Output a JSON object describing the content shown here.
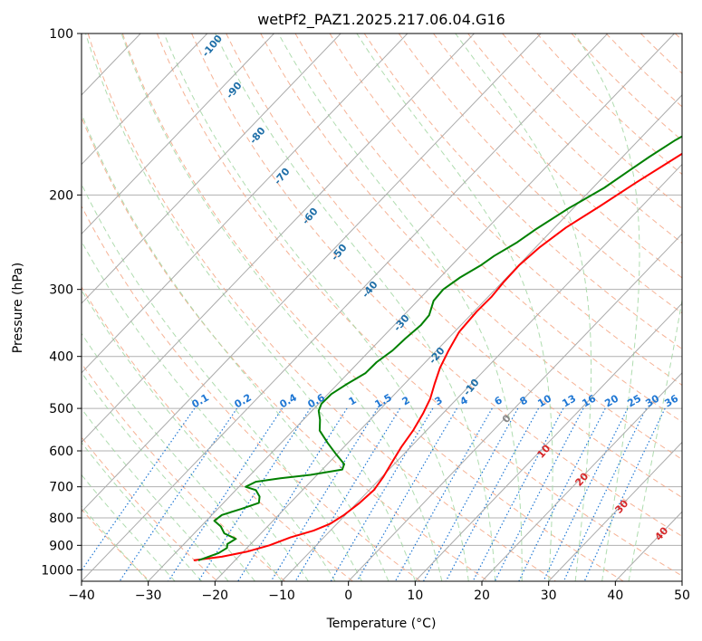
{
  "chart_data": {
    "type": "line",
    "title": "wetPf2_PAZ1.2025.217.06.04.G16",
    "xlabel": "Temperature (°C)",
    "ylabel": "Pressure (hPa)",
    "xlim": [
      -40,
      50
    ],
    "ylim": [
      1050,
      100
    ],
    "y_scale": "log",
    "grid": true,
    "x_ticks": [
      -40,
      -30,
      -20,
      -10,
      0,
      10,
      20,
      30,
      40,
      50
    ],
    "y_ticks": [
      100,
      200,
      300,
      400,
      500,
      600,
      700,
      800,
      900,
      1000
    ],
    "x_tick_labels": [
      "−40",
      "−30",
      "−20",
      "−10",
      "0",
      "10",
      "20",
      "30",
      "40",
      "50"
    ],
    "y_tick_labels": [
      "100",
      "200",
      "300",
      "400",
      "500",
      "600",
      "700",
      "800",
      "900",
      "1000"
    ],
    "colors": {
      "temperature": "#ff0000",
      "dewpoint": "#008000",
      "isotherm": "#aaaaaa",
      "dry_adiabat": "#f4a582",
      "moist_adiabat": "#a6d8a6",
      "mixing_ratio": "#1f77d4",
      "dry_label": "#d62728",
      "moist_label": "#1f6fa8"
    },
    "series": [
      {
        "points": [
          [
            -26.2,
            960
          ],
          [
            -22.5,
            945
          ],
          [
            -19.5,
            925
          ],
          [
            -17.0,
            900
          ],
          [
            -15.0,
            870
          ],
          [
            -12.5,
            845
          ],
          [
            -11.0,
            820
          ],
          [
            -10.2,
            790
          ],
          [
            -9.6,
            750
          ],
          [
            -9.3,
            710
          ],
          [
            -9.8,
            670
          ],
          [
            -10.6,
            630
          ],
          [
            -11.4,
            590
          ],
          [
            -12.0,
            550
          ],
          [
            -13.0,
            510
          ],
          [
            -14.0,
            480
          ],
          [
            -15.5,
            450
          ],
          [
            -17.0,
            420
          ],
          [
            -18.2,
            390
          ],
          [
            -19.3,
            360
          ],
          [
            -19.6,
            330
          ],
          [
            -19.5,
            310
          ],
          [
            -19.8,
            290
          ],
          [
            -19.9,
            270
          ],
          [
            -19.4,
            250
          ],
          [
            -18.3,
            230
          ],
          [
            -16.3,
            210
          ],
          [
            -14.3,
            190
          ],
          [
            -12.5,
            175
          ],
          [
            -10.5,
            160
          ],
          [
            -8.5,
            145
          ],
          [
            -6.5,
            132
          ],
          [
            -5.0,
            120
          ],
          [
            -3.0,
            110
          ],
          [
            0.0,
            102
          ],
          [
            2.5,
            96
          ]
        ]
      },
      {
        "points": [
          [
            -25.5,
            960
          ],
          [
            -24.5,
            945
          ],
          [
            -23.5,
            930
          ],
          [
            -23.0,
            910
          ],
          [
            -23.5,
            895
          ],
          [
            -23.0,
            875
          ],
          [
            -25.5,
            855
          ],
          [
            -27.0,
            830
          ],
          [
            -28.8,
            810
          ],
          [
            -28.5,
            790
          ],
          [
            -26.5,
            770
          ],
          [
            -24.7,
            750
          ],
          [
            -25.5,
            730
          ],
          [
            -27.0,
            710
          ],
          [
            -29.0,
            700
          ],
          [
            -28.2,
            685
          ],
          [
            -25.0,
            675
          ],
          [
            -21.0,
            665
          ],
          [
            -17.0,
            650
          ],
          [
            -17.5,
            635
          ],
          [
            -20.0,
            610
          ],
          [
            -23.0,
            580
          ],
          [
            -26.0,
            550
          ],
          [
            -27.5,
            525
          ],
          [
            -29.0,
            505
          ],
          [
            -29.6,
            490
          ],
          [
            -29.5,
            470
          ],
          [
            -28.6,
            450
          ],
          [
            -27.4,
            430
          ],
          [
            -27.3,
            410
          ],
          [
            -26.6,
            390
          ],
          [
            -26.4,
            370
          ],
          [
            -26.0,
            350
          ],
          [
            -26.2,
            335
          ],
          [
            -27.6,
            315
          ],
          [
            -27.8,
            300
          ],
          [
            -27.0,
            285
          ],
          [
            -25.6,
            270
          ],
          [
            -25.0,
            260
          ],
          [
            -23.5,
            245
          ],
          [
            -22.6,
            232
          ],
          [
            -20.7,
            212
          ],
          [
            -18.3,
            194
          ],
          [
            -17.0,
            180
          ],
          [
            -16.0,
            170
          ],
          [
            -14.5,
            158
          ],
          [
            -12.0,
            145
          ],
          [
            -9.5,
            133
          ],
          [
            -7.0,
            122
          ],
          [
            -4.5,
            113
          ],
          [
            -2.0,
            104
          ],
          [
            0.0,
            97
          ]
        ]
      }
    ],
    "moist_adiabat_labels": [
      "-100",
      "-90",
      "-80",
      "-70",
      "-60",
      "-50",
      "-40",
      "-30",
      "-20",
      "-10",
      "0"
    ],
    "dry_adiabat_labels": [
      "10",
      "20",
      "30",
      "40"
    ],
    "mixing_ratio_labels": [
      "0.1",
      "0.2",
      "0.4",
      "0.6",
      "1",
      "1.5",
      "2",
      "3",
      "4",
      "6",
      "8",
      "10",
      "13",
      "16",
      "20",
      "25",
      "30",
      "36"
    ]
  }
}
